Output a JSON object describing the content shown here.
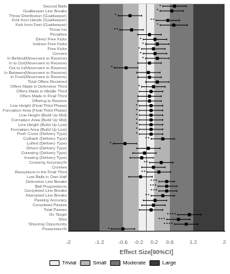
{
  "chart_data": {
    "type": "forest",
    "xlabel": "Effect Size[90%CI]",
    "categories": [
      "Second Balls",
      "Goalkeeper Line Breaks",
      "Throw Distribution (Goalkeeper)",
      "Kick from Hands (Goalkeeper)",
      "Kick from Feet (Goalkeeper)",
      "Throw Ins",
      "Penalties",
      "Direct Free Kicks",
      "Indirect Free Kicks",
      "Free Kicks",
      "Corners",
      "In Behind(Movement to Receive)",
      "In to Out(Movement to Receive)",
      "Out to In(Movement to Receive)",
      "In Between(Movement to Receive)",
      "In Front(Movement to Receive)",
      "Total Offers Received",
      "Offers Made in Defensive Third",
      "Offers Made in Middle Third",
      "Offers Made in Final Third",
      "Offering to Receive",
      "Line Height (Final Third Phase)",
      "Formation Area (Final Third Phase)",
      "Line Height (Build Up Mid)",
      "Formation Area (Build Up Mid)",
      "Line Height (Build Up Low)",
      "Formation Area (Build Up Low)",
      "Push Cross (Delivery Type)",
      "Cutback (Delivery Type)",
      "Lofted (Delivery Type)",
      "Driven (Delivery Type)",
      "Outswing (Delivery Type)",
      "Inswing (Delivery Type)",
      "Crossing Accuracy%",
      "Crosses",
      "Receptions in the Final Third",
      "Lost Balls in Own Half",
      "Defensive Line Breaks",
      "Ball Progressions",
      "Completed Line Breaks",
      "Attempted Line Breaks",
      "Passing Accuracy",
      "Completed Passes",
      "Total Passes",
      "On Target",
      "Shot",
      "Shooting Opportunity",
      "Possession%"
    ],
    "values": [
      0.72,
      0.65,
      -0.42,
      0.55,
      0.7,
      -0.38,
      0.08,
      0.22,
      0.28,
      0.18,
      0.22,
      0.28,
      0.08,
      -0.52,
      0.05,
      0.08,
      0.28,
      0.18,
      0.12,
      0.08,
      0.08,
      0.12,
      0.12,
      0.12,
      0.12,
      0.12,
      0.12,
      0.12,
      0.42,
      -0.55,
      0.05,
      -0.05,
      -0.12,
      0.38,
      0.18,
      0.32,
      -0.15,
      0.52,
      0.52,
      0.52,
      0.42,
      0.22,
      0.18,
      0.12,
      1.1,
      0.82,
      1.02,
      -0.6
    ],
    "ci_lower": [
      0.42,
      0.35,
      -0.72,
      0.25,
      0.35,
      -0.68,
      -0.22,
      -0.08,
      -0.02,
      -0.12,
      -0.08,
      -0.02,
      -0.22,
      -0.82,
      -0.25,
      -0.22,
      -0.02,
      -0.12,
      -0.18,
      -0.22,
      -0.22,
      -0.18,
      -0.18,
      -0.18,
      -0.18,
      -0.18,
      -0.18,
      -0.18,
      0.12,
      -0.85,
      -0.25,
      -0.35,
      -0.42,
      0.08,
      -0.12,
      0.02,
      -0.45,
      0.32,
      0.3,
      0.32,
      0.12,
      -0.08,
      -0.12,
      -0.18,
      0.8,
      0.52,
      0.72,
      -0.9
    ],
    "ci_upper": [
      1.02,
      0.95,
      -0.12,
      0.85,
      1.05,
      -0.08,
      0.38,
      0.52,
      0.58,
      0.48,
      0.52,
      0.58,
      0.38,
      -0.22,
      0.35,
      0.38,
      0.58,
      0.48,
      0.42,
      0.38,
      0.38,
      0.42,
      0.42,
      0.42,
      0.42,
      0.42,
      0.42,
      0.42,
      0.72,
      -0.25,
      0.35,
      0.25,
      0.18,
      0.68,
      0.48,
      0.62,
      0.15,
      0.72,
      0.78,
      0.78,
      0.72,
      0.52,
      0.48,
      0.42,
      1.4,
      1.12,
      1.32,
      -0.3
    ],
    "stars": [
      "*",
      "*",
      "*",
      "**",
      "*",
      "**",
      null,
      "*",
      "*",
      "*",
      "*",
      "*",
      null,
      "*",
      null,
      null,
      null,
      "*",
      null,
      null,
      null,
      "*",
      "*",
      "*",
      "*",
      "*",
      "*",
      "*",
      "**",
      "*",
      null,
      null,
      null,
      "**",
      null,
      "**",
      null,
      "***",
      "***",
      "***",
      "**",
      null,
      null,
      null,
      "****",
      "***",
      "****",
      "*"
    ],
    "xlim": [
      -2,
      2
    ],
    "xticks": [
      -2,
      -1.2,
      -0.6,
      -0.2,
      0.2,
      0.6,
      1.2,
      2
    ],
    "reference_line": 0,
    "bands": [
      {
        "from": -2,
        "to": 2,
        "color": "#3c3c3c"
      },
      {
        "from": -1.2,
        "to": 1.2,
        "color": "#787878"
      },
      {
        "from": -0.6,
        "to": 0.6,
        "color": "#b4b4b4"
      },
      {
        "from": -0.2,
        "to": 0.2,
        "color": "#efefef"
      }
    ],
    "legend_entries": [
      {
        "name": "Trivial",
        "color": "#f0f0f0"
      },
      {
        "name": "Small",
        "color": "#b8b8b8"
      },
      {
        "name": "Moderate",
        "color": "#787878"
      },
      {
        "name": "Large",
        "color": "#3c3c3c"
      }
    ],
    "legend": "bottom",
    "grid": false
  }
}
